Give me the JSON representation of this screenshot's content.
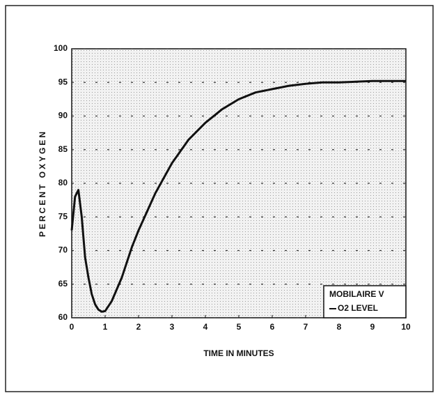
{
  "chart_data": {
    "type": "line",
    "xlabel": "TIME IN MINUTES",
    "ylabel": "PERCENT OXYGEN",
    "legend_title": "MOBILAIRE V",
    "legend": "lower right",
    "grid": true,
    "x": [
      0,
      0.1,
      0.2,
      0.3,
      0.4,
      0.5,
      0.6,
      0.7,
      0.8,
      0.9,
      1.0,
      1.2,
      1.5,
      1.8,
      2.0,
      2.5,
      3.0,
      3.5,
      4.0,
      4.5,
      5.0,
      5.5,
      6.0,
      6.5,
      7.0,
      7.5,
      8.0,
      8.5,
      9.0,
      9.5,
      10.0
    ],
    "series": [
      {
        "name": "O2 LEVEL",
        "color": "#111111",
        "values": [
          73,
          78,
          79,
          75,
          69,
          66,
          63.5,
          62,
          61.2,
          60.9,
          61,
          62.5,
          66,
          70.5,
          73,
          78.5,
          83,
          86.5,
          89,
          91,
          92.5,
          93.5,
          94,
          94.5,
          94.8,
          95,
          95,
          95.1,
          95.2,
          95.2,
          95.2
        ]
      }
    ],
    "xlim": [
      0,
      10
    ],
    "xticks": [
      0,
      1,
      2,
      3,
      4,
      5,
      6,
      7,
      8,
      9,
      10
    ],
    "ylim": [
      60,
      100
    ],
    "yticks": [
      60,
      65,
      70,
      75,
      80,
      85,
      90,
      95,
      100
    ]
  }
}
